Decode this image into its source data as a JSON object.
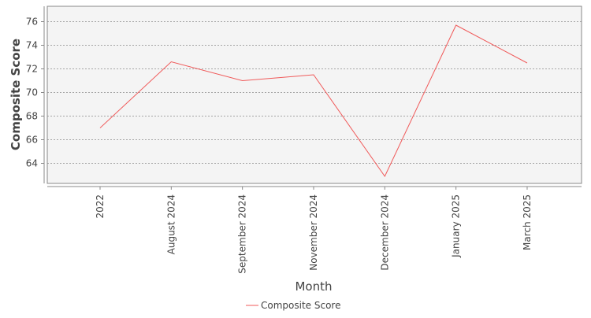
{
  "chart_data": {
    "type": "line",
    "categories": [
      "2022",
      "August 2024",
      "September 2024",
      "November 2024",
      "December 2024",
      "January 2025",
      "March 2025"
    ],
    "series": [
      {
        "name": "Composite Score",
        "values": [
          67.0,
          72.6,
          71.0,
          71.5,
          62.9,
          75.7,
          72.5
        ],
        "color": "#f05a5a"
      }
    ],
    "xlabel": "Month",
    "ylabel": "Composite Score",
    "ylim": [
      62.3,
      77.3
    ],
    "yticks": [
      64,
      66,
      68,
      70,
      72,
      74,
      76
    ],
    "grid": true,
    "legend_position": "bottom-center",
    "colors": {
      "plot_background": "#f4f4f4",
      "grid": "#8a8a8a",
      "axis": "#888888",
      "text": "#444444"
    }
  }
}
